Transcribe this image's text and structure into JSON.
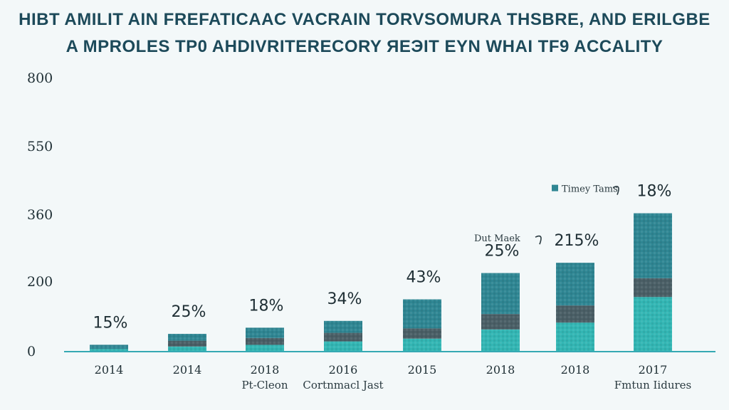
{
  "title_lines": [
    "HIBT AMILIT AIN FREFATICAAC VACRAIN  TORVSOMURA THSBRE, AND ERILGBE",
    "A MPROLES TP0 AHDIVRITERECORY ЯЕЭIT EYN WHAI TF9 ACCALITY"
  ],
  "colors": {
    "title": "#1d4a5a",
    "top_segment": "#2f8693",
    "middle_segment": "#4a5f66",
    "bottom_segment": "#33b6b4",
    "axis": "#35a9b3"
  },
  "chart_data": {
    "type": "bar",
    "stacked": true,
    "y_ticks": [
      "800",
      "550",
      "360",
      "200",
      "0"
    ],
    "categories": [
      "2014",
      "2014",
      "2018",
      "2016",
      "2015",
      "2018",
      "2018",
      "2017"
    ],
    "sub_labels": [
      "",
      "",
      "Pt-Cleon",
      "Cortnmacl Jast",
      "",
      "",
      "",
      "Fmtun Iidures"
    ],
    "data_labels": [
      "15%",
      "25%",
      "18%",
      "34%",
      "43%",
      "25%",
      "215%",
      "18%"
    ],
    "series": [
      {
        "values": [
          8,
          15,
          20,
          30,
          38,
          65,
          85,
          160
        ]
      },
      {
        "values": [
          0,
          17,
          20,
          25,
          30,
          45,
          50,
          55
        ]
      },
      {
        "values": [
          12,
          20,
          30,
          35,
          85,
          120,
          125,
          190
        ]
      }
    ],
    "annotations": [
      {
        "text": "Timey Tams",
        "bar_index": 7,
        "marker": true
      },
      {
        "text": "Dut Maek",
        "bar_index": 6,
        "marker": false
      }
    ],
    "ylim": [
      0,
      800
    ],
    "grid": false,
    "legend": "none"
  }
}
